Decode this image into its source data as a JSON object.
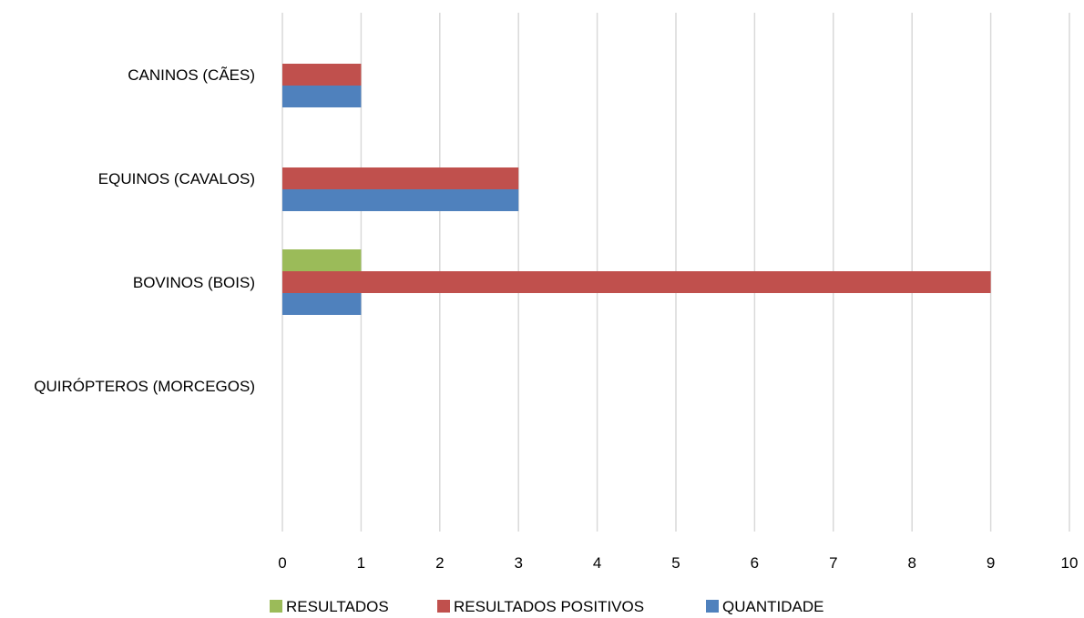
{
  "chart_data": {
    "type": "bar",
    "orientation": "horizontal",
    "categories": [
      "QUIRÓPTEROS (MORCEGOS)",
      "BOVINOS (BOIS)",
      "EQUINOS (CAVALOS)",
      "CANINOS (CÃES)"
    ],
    "series": [
      {
        "name": "QUANTIDADE",
        "values": [
          0,
          1,
          3,
          1
        ],
        "color": "#4f81bd"
      },
      {
        "name": "RESULTADOS POSITIVOS",
        "values": [
          0,
          9,
          3,
          1
        ],
        "color": "#c0504d"
      },
      {
        "name": "RESULTADOS",
        "values": [
          0,
          1,
          0,
          0
        ],
        "color": "#9bbb59"
      }
    ],
    "xlim": [
      0,
      10
    ],
    "xticks": [
      "0",
      "1",
      "2",
      "3",
      "4",
      "5",
      "6",
      "7",
      "8",
      "9",
      "10"
    ],
    "grid": "vertical",
    "legend": "bottom",
    "legend_order": [
      "RESULTADOS",
      "RESULTADOS POSITIVOS",
      "QUANTIDADE"
    ],
    "title": "",
    "xlabel": "",
    "ylabel": ""
  }
}
